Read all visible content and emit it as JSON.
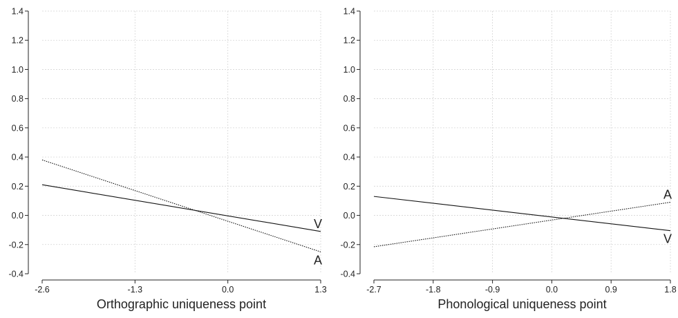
{
  "chart_data": [
    {
      "type": "line",
      "xlabel": "Orthographic uniqueness point",
      "ylabel": "",
      "xlim": [
        -2.6,
        1.3
      ],
      "ylim": [
        -0.4,
        1.4
      ],
      "xticks": [
        "-2.6",
        "-1.3",
        "0.0",
        "1.3"
      ],
      "yticks": [
        "-0.4",
        "-0.2",
        "0.0",
        "0.2",
        "0.4",
        "0.6",
        "0.8",
        "1.0",
        "1.2",
        "1.4"
      ],
      "grid": true,
      "series": [
        {
          "name": "V",
          "style": "solid",
          "x": [
            -2.6,
            1.3
          ],
          "y": [
            0.21,
            -0.11
          ]
        },
        {
          "name": "A",
          "style": "dotted",
          "x": [
            -2.6,
            1.3
          ],
          "y": [
            0.38,
            -0.25
          ]
        }
      ]
    },
    {
      "type": "line",
      "xlabel": "Phonological uniqueness point",
      "ylabel": "",
      "xlim": [
        -2.7,
        1.8
      ],
      "ylim": [
        -0.4,
        1.4
      ],
      "xticks": [
        "-2.7",
        "-1.8",
        "-0.9",
        "0.0",
        "0.9",
        "1.8"
      ],
      "yticks": [
        "-0.4",
        "-0.2",
        "0.0",
        "0.2",
        "0.4",
        "0.6",
        "0.8",
        "1.0",
        "1.2",
        "1.4"
      ],
      "grid": true,
      "series": [
        {
          "name": "V",
          "style": "solid",
          "x": [
            -2.7,
            1.8
          ],
          "y": [
            0.13,
            -0.105
          ]
        },
        {
          "name": "A",
          "style": "dotted",
          "x": [
            -2.7,
            1.8
          ],
          "y": [
            -0.215,
            0.09
          ]
        }
      ]
    }
  ]
}
